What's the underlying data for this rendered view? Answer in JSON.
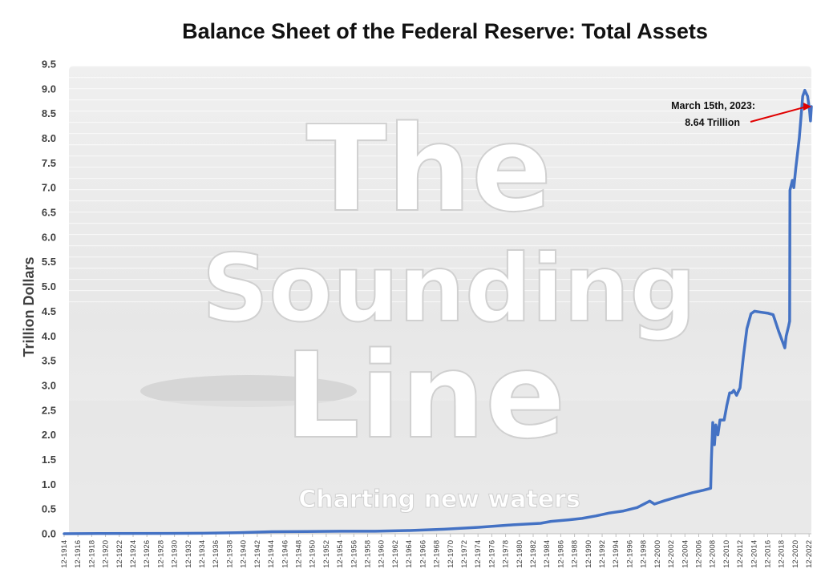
{
  "chart_data": {
    "type": "line",
    "title": "Balance Sheet of the Federal Reserve: Total Assets",
    "xlabel": "",
    "ylabel": "Trillion Dollars",
    "ylim": [
      0,
      9.5
    ],
    "y_ticks": [
      "0.0",
      "0.5",
      "1.0",
      "1.5",
      "2.0",
      "2.5",
      "3.0",
      "3.5",
      "4.0",
      "4.5",
      "5.0",
      "5.5",
      "6.0",
      "6.5",
      "7.0",
      "7.5",
      "8.0",
      "8.5",
      "9.0",
      "9.5"
    ],
    "x_range": [
      1914.92,
      2023.25
    ],
    "x_ticks": [
      "12-1914",
      "12-1916",
      "12-1918",
      "12-1920",
      "12-1922",
      "12-1924",
      "12-1926",
      "12-1928",
      "12-1930",
      "12-1932",
      "12-1934",
      "12-1936",
      "12-1938",
      "12-1940",
      "12-1942",
      "12-1944",
      "12-1946",
      "12-1948",
      "12-1950",
      "12-1952",
      "12-1954",
      "12-1956",
      "12-1958",
      "12-1960",
      "12-1962",
      "12-1964",
      "12-1966",
      "12-1968",
      "12-1970",
      "12-1972",
      "12-1974",
      "12-1976",
      "12-1978",
      "12-1980",
      "12-1982",
      "12-1984",
      "12-1986",
      "12-1988",
      "12-1990",
      "12-1992",
      "12-1994",
      "12-1996",
      "12-1998",
      "12-2000",
      "12-2002",
      "12-2004",
      "12-2006",
      "12-2008",
      "12-2010",
      "12-2012",
      "12-2014",
      "12-2016",
      "12-2018",
      "12-2020",
      "12-2022"
    ],
    "grid": false,
    "legend": "none",
    "series": [
      {
        "color": "#4472C4",
        "points": [
          [
            1914.92,
            0.0
          ],
          [
            1920.0,
            0.005
          ],
          [
            1930.0,
            0.007
          ],
          [
            1935.0,
            0.01
          ],
          [
            1940.0,
            0.02
          ],
          [
            1945.0,
            0.04
          ],
          [
            1950.0,
            0.045
          ],
          [
            1955.0,
            0.05
          ],
          [
            1960.0,
            0.05
          ],
          [
            1965.0,
            0.065
          ],
          [
            1970.0,
            0.09
          ],
          [
            1975.0,
            0.13
          ],
          [
            1980.0,
            0.18
          ],
          [
            1984.0,
            0.21
          ],
          [
            1985.5,
            0.25
          ],
          [
            1988.0,
            0.28
          ],
          [
            1990.0,
            0.31
          ],
          [
            1992.0,
            0.36
          ],
          [
            1994.0,
            0.42
          ],
          [
            1996.0,
            0.46
          ],
          [
            1998.0,
            0.53
          ],
          [
            1999.8,
            0.66
          ],
          [
            2000.5,
            0.6
          ],
          [
            2002.0,
            0.67
          ],
          [
            2004.0,
            0.75
          ],
          [
            2006.0,
            0.83
          ],
          [
            2007.6,
            0.88
          ],
          [
            2008.65,
            0.92
          ],
          [
            2008.75,
            1.5
          ],
          [
            2008.95,
            2.25
          ],
          [
            2009.2,
            1.8
          ],
          [
            2009.4,
            2.2
          ],
          [
            2009.7,
            2.0
          ],
          [
            2010.0,
            2.3
          ],
          [
            2010.6,
            2.3
          ],
          [
            2011.0,
            2.6
          ],
          [
            2011.4,
            2.85
          ],
          [
            2011.7,
            2.85
          ],
          [
            2012.0,
            2.9
          ],
          [
            2012.4,
            2.8
          ],
          [
            2012.9,
            2.95
          ],
          [
            2013.4,
            3.6
          ],
          [
            2013.9,
            4.15
          ],
          [
            2014.5,
            4.45
          ],
          [
            2015.0,
            4.5
          ],
          [
            2016.0,
            4.48
          ],
          [
            2017.0,
            4.46
          ],
          [
            2017.7,
            4.43
          ],
          [
            2018.5,
            4.1
          ],
          [
            2019.4,
            3.76
          ],
          [
            2019.6,
            4.0
          ],
          [
            2019.95,
            4.2
          ],
          [
            2020.1,
            4.3
          ],
          [
            2020.15,
            6.95
          ],
          [
            2020.5,
            7.15
          ],
          [
            2020.7,
            7.0
          ],
          [
            2021.0,
            7.4
          ],
          [
            2021.5,
            8.0
          ],
          [
            2022.0,
            8.85
          ],
          [
            2022.3,
            8.97
          ],
          [
            2022.7,
            8.85
          ],
          [
            2023.0,
            8.55
          ],
          [
            2023.12,
            8.35
          ],
          [
            2023.25,
            8.64
          ]
        ]
      }
    ],
    "annotations": [
      {
        "lines": [
          "March 15th, 2023:",
          "8.64 Trillion"
        ],
        "x": 2023.25,
        "y": 8.64,
        "arrow_color": "#E00000"
      }
    ],
    "watermark": {
      "lines": [
        "The",
        "Sounding",
        "Line"
      ],
      "tagline": "Charting new waters"
    }
  }
}
